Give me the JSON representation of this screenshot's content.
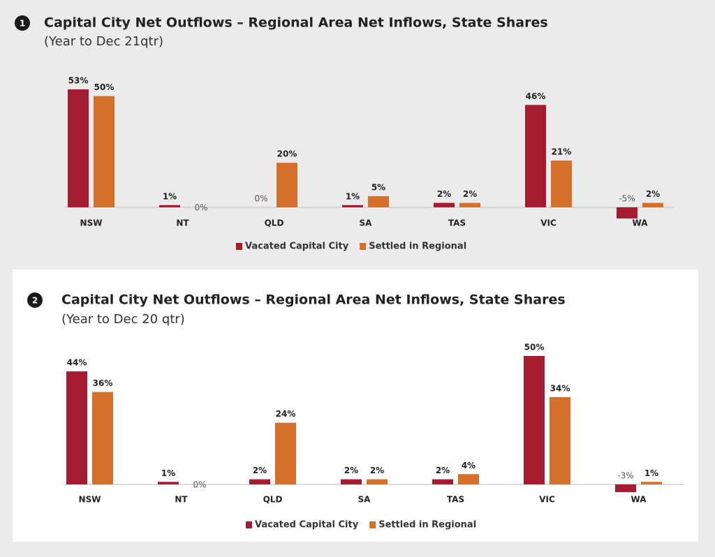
{
  "chart_data": [
    {
      "type": "bar",
      "badge": "1",
      "title": "Capital City Net Outflows – Regional Area Net Inflows, State Shares",
      "subtitle": "(Year to Dec 21qtr)",
      "categories": [
        "NSW",
        "NT",
        "QLD",
        "SA",
        "TAS",
        "VIC",
        "WA"
      ],
      "series": [
        {
          "name": "Vacated Capital City",
          "color": "#a51c30",
          "values": [
            53,
            1,
            0,
            1,
            2,
            46,
            -5
          ],
          "value_labels": [
            "53%",
            "1%",
            "0%",
            "1%",
            "2%",
            "46%",
            "-5%"
          ]
        },
        {
          "name": "Settled in Regional",
          "color": "#d4702a",
          "values": [
            50,
            0,
            20,
            5,
            2,
            21,
            2
          ],
          "value_labels": [
            "50%",
            "0%",
            "20%",
            "5%",
            "2%",
            "21%",
            "2%"
          ]
        }
      ]
    },
    {
      "type": "bar",
      "badge": "2",
      "title": "Capital City Net Outflows – Regional Area Net Inflows, State Shares",
      "subtitle": "(Year to Dec 20 qtr)",
      "categories": [
        "NSW",
        "NT",
        "QLD",
        "SA",
        "TAS",
        "VIC",
        "WA"
      ],
      "series": [
        {
          "name": "Vacated Capital City",
          "color": "#a51c30",
          "values": [
            44,
            1,
            2,
            2,
            2,
            50,
            -3
          ],
          "value_labels": [
            "44%",
            "1%",
            "2%",
            "2%",
            "2%",
            "50%",
            "-3%"
          ]
        },
        {
          "name": "Settled in Regional",
          "color": "#d4702a",
          "values": [
            36,
            0,
            24,
            2,
            4,
            34,
            1
          ],
          "value_labels": [
            "36%",
            "0%",
            "24%",
            "2%",
            "4%",
            "34%",
            "1%"
          ]
        }
      ]
    }
  ]
}
